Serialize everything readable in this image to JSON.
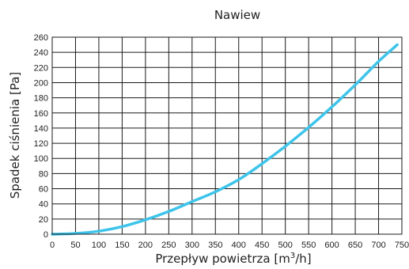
{
  "chart_data": {
    "type": "line",
    "title": "Nawiew",
    "xlabel": "Przepływ powietrza [m",
    "xlabel_sup": "3",
    "xlabel_tail": "/h]",
    "ylabel": "Spadek ciśnienia [Pa]",
    "xlim": [
      0,
      750
    ],
    "ylim": [
      0,
      260
    ],
    "xticks": [
      0,
      50,
      100,
      150,
      200,
      250,
      300,
      350,
      400,
      450,
      500,
      550,
      600,
      650,
      700,
      750
    ],
    "yticks": [
      0,
      20,
      40,
      60,
      80,
      100,
      120,
      140,
      160,
      180,
      200,
      220,
      240,
      260
    ],
    "grid": true,
    "series": [
      {
        "color": "#3ec4ea",
        "x": [
          0,
          50,
          100,
          150,
          200,
          250,
          300,
          350,
          400,
          450,
          500,
          550,
          600,
          650,
          700,
          740
        ],
        "y": [
          0,
          1,
          4,
          10,
          19,
          30,
          43,
          56,
          72,
          93,
          116,
          141,
          168,
          197,
          228,
          250
        ]
      }
    ]
  }
}
